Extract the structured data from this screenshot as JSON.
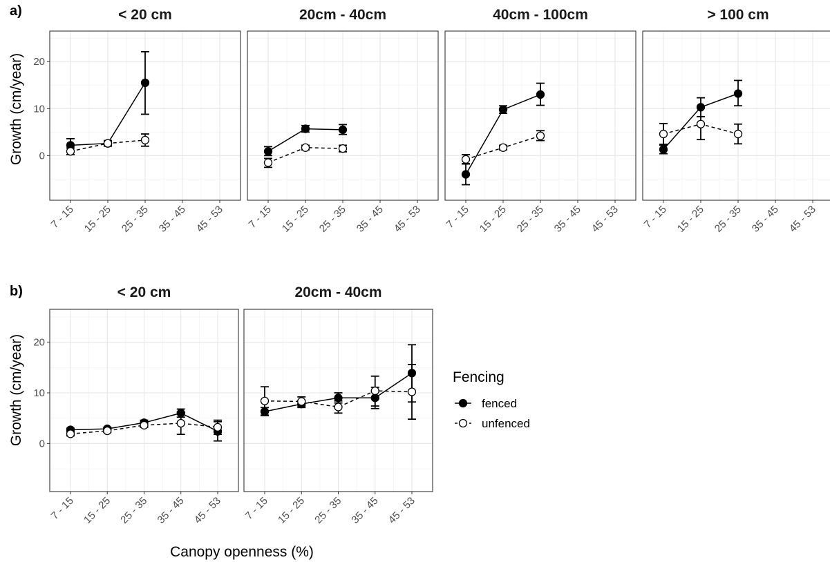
{
  "figure": {
    "x_axis_title": "Canopy openness (%)",
    "y_axis_title": "Growth (cm/year)",
    "legend": {
      "title": "Fencing",
      "items": [
        {
          "label": "fenced",
          "marker": "filled-circle",
          "line": "solid"
        },
        {
          "label": "unfenced",
          "marker": "open-circle",
          "line": "dashed"
        }
      ]
    }
  },
  "chart_data": [
    {
      "panel": "a)",
      "type": "line",
      "x_categories": [
        "7 - 15",
        "15 - 25",
        "25 - 35",
        "35 - 45",
        "45 - 53"
      ],
      "ylim": [
        -9.5,
        26.5
      ],
      "yticks": [
        0,
        10,
        20
      ],
      "ylabel": "Growth (cm/year)",
      "grid": true,
      "facets": [
        {
          "title": "< 20 cm",
          "series": [
            {
              "name": "fenced",
              "points": [
                {
                  "x": "7 - 15",
                  "y": 2.2,
                  "lo": 0.8,
                  "hi": 3.6
                },
                {
                  "x": "15 - 25",
                  "y": 2.6,
                  "lo": 2.0,
                  "hi": 3.2
                },
                {
                  "x": "25 - 35",
                  "y": 15.5,
                  "lo": 8.8,
                  "hi": 22.1
                }
              ]
            },
            {
              "name": "unfenced",
              "points": [
                {
                  "x": "7 - 15",
                  "y": 0.9,
                  "lo": 0.2,
                  "hi": 1.6
                },
                {
                  "x": "15 - 25",
                  "y": 2.6,
                  "lo": 2.2,
                  "hi": 3.0
                },
                {
                  "x": "25 - 35",
                  "y": 3.3,
                  "lo": 2.0,
                  "hi": 4.6
                }
              ]
            }
          ]
        },
        {
          "title": "20cm - 40cm",
          "series": [
            {
              "name": "fenced",
              "points": [
                {
                  "x": "7 - 15",
                  "y": 0.9,
                  "lo": 0.0,
                  "hi": 1.9
                },
                {
                  "x": "15 - 25",
                  "y": 5.7,
                  "lo": 5.0,
                  "hi": 6.4
                },
                {
                  "x": "25 - 35",
                  "y": 5.5,
                  "lo": 4.5,
                  "hi": 6.6
                }
              ]
            },
            {
              "name": "unfenced",
              "points": [
                {
                  "x": "7 - 15",
                  "y": -1.5,
                  "lo": -2.5,
                  "hi": -0.6
                },
                {
                  "x": "15 - 25",
                  "y": 1.7,
                  "lo": 1.2,
                  "hi": 2.2
                },
                {
                  "x": "25 - 35",
                  "y": 1.5,
                  "lo": 0.8,
                  "hi": 2.2
                }
              ]
            }
          ]
        },
        {
          "title": "40cm - 100cm",
          "series": [
            {
              "name": "fenced",
              "points": [
                {
                  "x": "7 - 15",
                  "y": -4.0,
                  "lo": -6.2,
                  "hi": -1.7
                },
                {
                  "x": "15 - 25",
                  "y": 9.8,
                  "lo": 9.0,
                  "hi": 10.6
                },
                {
                  "x": "25 - 35",
                  "y": 13.0,
                  "lo": 10.7,
                  "hi": 15.4
                }
              ]
            },
            {
              "name": "unfenced",
              "points": [
                {
                  "x": "7 - 15",
                  "y": -0.8,
                  "lo": -1.8,
                  "hi": 0.2
                },
                {
                  "x": "15 - 25",
                  "y": 1.7,
                  "lo": 1.2,
                  "hi": 2.2
                },
                {
                  "x": "25 - 35",
                  "y": 4.2,
                  "lo": 3.2,
                  "hi": 5.3
                }
              ]
            }
          ]
        },
        {
          "title": "> 100 cm",
          "series": [
            {
              "name": "fenced",
              "points": [
                {
                  "x": "7 - 15",
                  "y": 1.3,
                  "lo": 0.4,
                  "hi": 2.2
                },
                {
                  "x": "15 - 25",
                  "y": 10.3,
                  "lo": 8.3,
                  "hi": 12.3
                },
                {
                  "x": "25 - 35",
                  "y": 13.2,
                  "lo": 10.6,
                  "hi": 16.0
                }
              ]
            },
            {
              "name": "unfenced",
              "points": [
                {
                  "x": "7 - 15",
                  "y": 4.6,
                  "lo": 2.4,
                  "hi": 6.8
                },
                {
                  "x": "15 - 25",
                  "y": 6.7,
                  "lo": 3.4,
                  "hi": 8.3
                },
                {
                  "x": "25 - 35",
                  "y": 4.6,
                  "lo": 2.5,
                  "hi": 6.7
                }
              ]
            }
          ]
        }
      ]
    },
    {
      "panel": "b)",
      "type": "line",
      "x_categories": [
        "7 - 15",
        "15 - 25",
        "25 - 35",
        "35 - 45",
        "45 - 53"
      ],
      "ylim": [
        -9.5,
        26.5
      ],
      "yticks": [
        0,
        10,
        20
      ],
      "ylabel": "Growth (cm/year)",
      "xlabel": "Canopy openness (%)",
      "grid": true,
      "facets": [
        {
          "title": "< 20 cm",
          "series": [
            {
              "name": "fenced",
              "points": [
                {
                  "x": "7 - 15",
                  "y": 2.7,
                  "lo": 2.4,
                  "hi": 3.0
                },
                {
                  "x": "15 - 25",
                  "y": 2.9,
                  "lo": 2.6,
                  "hi": 3.2
                },
                {
                  "x": "25 - 35",
                  "y": 4.1,
                  "lo": 3.6,
                  "hi": 4.6
                },
                {
                  "x": "35 - 45",
                  "y": 6.0,
                  "lo": 5.2,
                  "hi": 6.8
                },
                {
                  "x": "45 - 53",
                  "y": 2.4,
                  "lo": 0.5,
                  "hi": 4.3
                }
              ]
            },
            {
              "name": "unfenced",
              "points": [
                {
                  "x": "7 - 15",
                  "y": 1.9,
                  "lo": 1.5,
                  "hi": 2.3
                },
                {
                  "x": "15 - 25",
                  "y": 2.5,
                  "lo": 2.2,
                  "hi": 2.8
                },
                {
                  "x": "25 - 35",
                  "y": 3.6,
                  "lo": 3.2,
                  "hi": 4.0
                },
                {
                  "x": "35 - 45",
                  "y": 4.0,
                  "lo": 1.8,
                  "hi": 6.2
                },
                {
                  "x": "45 - 53",
                  "y": 3.2,
                  "lo": 1.8,
                  "hi": 4.6
                }
              ]
            }
          ]
        },
        {
          "title": "20cm - 40cm",
          "series": [
            {
              "name": "fenced",
              "points": [
                {
                  "x": "7 - 15",
                  "y": 6.3,
                  "lo": 5.5,
                  "hi": 7.1
                },
                {
                  "x": "15 - 25",
                  "y": 7.8,
                  "lo": 7.1,
                  "hi": 8.5
                },
                {
                  "x": "25 - 35",
                  "y": 9.0,
                  "lo": 8.0,
                  "hi": 10.0
                },
                {
                  "x": "35 - 45",
                  "y": 9.0,
                  "lo": 6.9,
                  "hi": 11.1
                },
                {
                  "x": "45 - 53",
                  "y": 13.9,
                  "lo": 8.2,
                  "hi": 19.5
                }
              ]
            },
            {
              "name": "unfenced",
              "points": [
                {
                  "x": "7 - 15",
                  "y": 8.4,
                  "lo": 5.6,
                  "hi": 11.2
                },
                {
                  "x": "15 - 25",
                  "y": 8.3,
                  "lo": 7.4,
                  "hi": 9.2
                },
                {
                  "x": "25 - 35",
                  "y": 7.2,
                  "lo": 6.0,
                  "hi": 8.4
                },
                {
                  "x": "35 - 45",
                  "y": 10.4,
                  "lo": 7.4,
                  "hi": 13.3
                },
                {
                  "x": "45 - 53",
                  "y": 10.2,
                  "lo": 4.8,
                  "hi": 15.6
                }
              ]
            }
          ]
        }
      ]
    }
  ]
}
